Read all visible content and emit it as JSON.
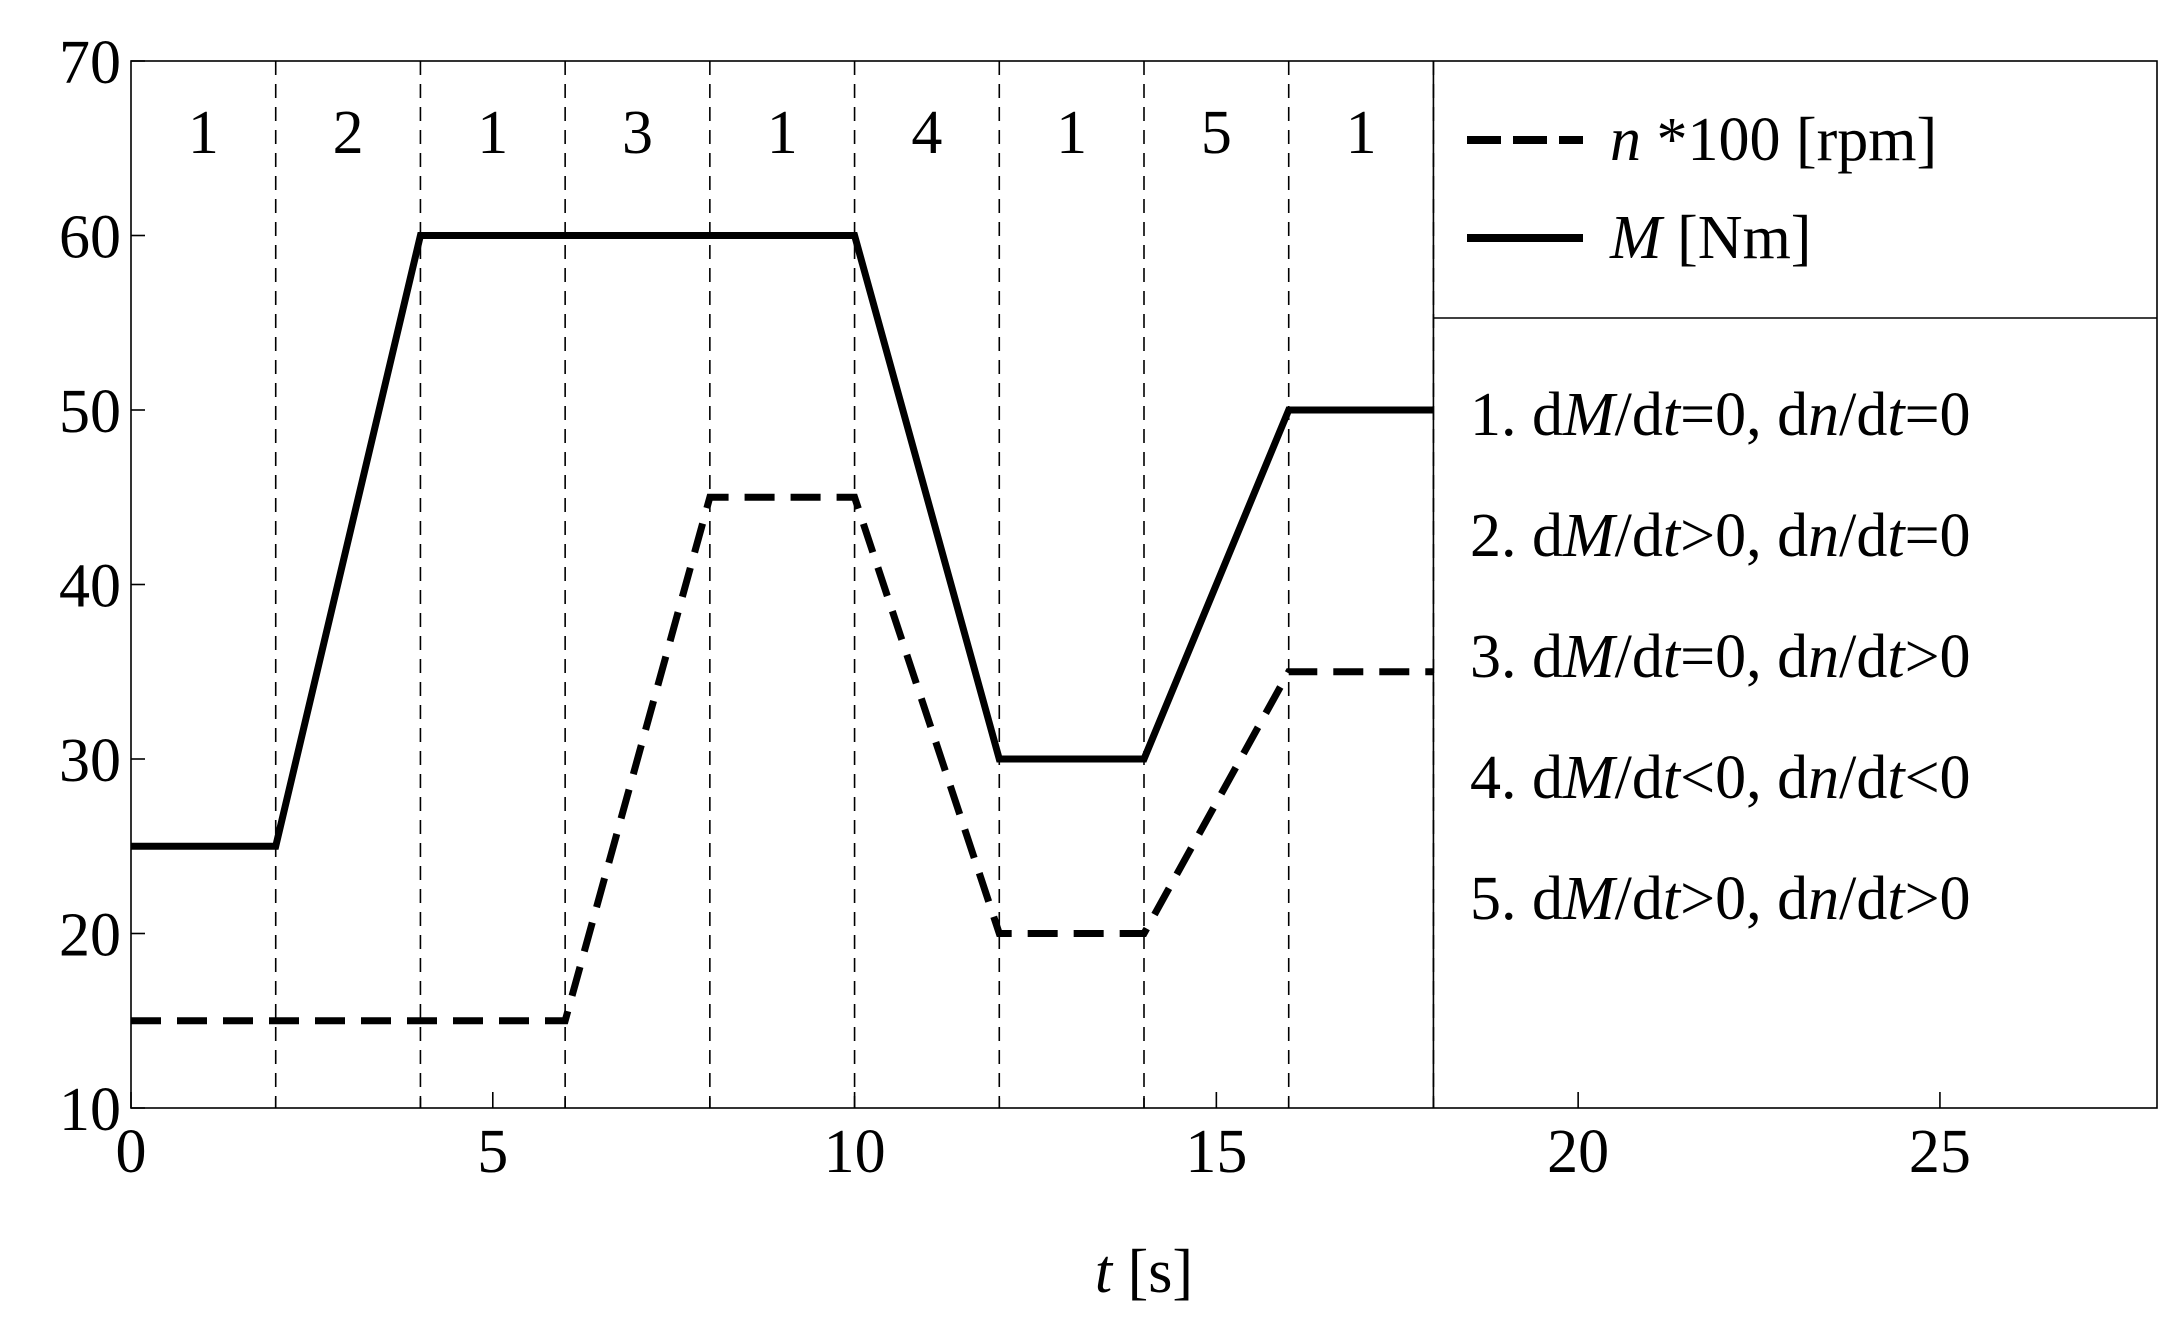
{
  "chart_data": {
    "type": "line",
    "xlabel": {
      "var": "t",
      "unit": " [s]"
    },
    "xlim": [
      0,
      28
    ],
    "ylim": [
      10,
      70
    ],
    "xticks": [
      0,
      5,
      10,
      15,
      20,
      25
    ],
    "yticks": [
      10,
      20,
      30,
      40,
      50,
      60,
      70
    ],
    "minor_xticks": [
      2,
      4,
      6,
      8,
      12,
      14,
      16,
      18
    ],
    "phase_boundaries": [
      2,
      4,
      6,
      8,
      10,
      12,
      14,
      16,
      18
    ],
    "phase_labels": [
      {
        "x": 1,
        "label": "1"
      },
      {
        "x": 3,
        "label": "2"
      },
      {
        "x": 5,
        "label": "1"
      },
      {
        "x": 7,
        "label": "3"
      },
      {
        "x": 9,
        "label": "1"
      },
      {
        "x": 11,
        "label": "4"
      },
      {
        "x": 13,
        "label": "1"
      },
      {
        "x": 15,
        "label": "5"
      },
      {
        "x": 17,
        "label": "1"
      }
    ],
    "series": [
      {
        "id": "n",
        "legend_var": "n",
        "legend_rest": " *100 [rpm]",
        "style": "dashed",
        "color": "#000000",
        "x": [
          0,
          2,
          4,
          6,
          8,
          10,
          12,
          14,
          16,
          18
        ],
        "y": [
          15,
          15,
          15,
          15,
          45,
          45,
          20,
          20,
          35,
          35
        ]
      },
      {
        "id": "M",
        "legend_var": "M",
        "legend_rest": "  [Nm]",
        "style": "solid",
        "color": "#000000",
        "x": [
          0,
          2,
          4,
          6,
          8,
          10,
          12,
          14,
          16,
          18
        ],
        "y": [
          25,
          25,
          60,
          60,
          60,
          60,
          30,
          30,
          50,
          50
        ]
      }
    ],
    "conditions": [
      {
        "num": "1.",
        "s1": ">0",
        "s2": "=0",
        "m_rel": "=0",
        "n_rel": "=0"
      },
      {
        "num": "2.",
        "m_rel": ">0",
        "n_rel": "=0"
      },
      {
        "num": "3.",
        "m_rel": "=0",
        "n_rel": ">0"
      },
      {
        "num": "4.",
        "m_rel": "<0",
        "n_rel": "<0"
      },
      {
        "num": "5.",
        "m_rel": ">0",
        "n_rel": ">0"
      }
    ],
    "legend_panel_from_x": 18
  }
}
